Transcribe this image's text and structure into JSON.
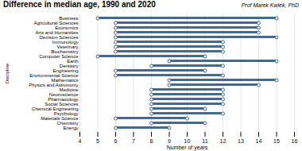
{
  "chart_data": {
    "type": "bar",
    "orientation": "horizontal",
    "title": "Difference in median age, 1990 and 2020",
    "xlabel": "Number of years",
    "ylabel": "Discipline",
    "annotations": [
      "Prof Marek Kwiek, PhD"
    ],
    "categories": [
      "Business",
      "Agricultural Sciences",
      "Economics",
      "Arts and Humanities",
      "Decision Sciences",
      "Immunology",
      "Veterinary",
      "Biochemistry",
      "Computer Science",
      "Earth",
      "Dentistry",
      "Engineering",
      "Environmental Science",
      "Mathematics",
      "Physics and Astronomy",
      "Medicine",
      "Neuroscience",
      "Pharmacology",
      "Social Sciences",
      "Chemical Engineering",
      "Psychology",
      "Materials Science",
      "Chemistry",
      "Energy"
    ],
    "values": [
      [
        5,
        15
      ],
      [
        6,
        14
      ],
      [
        6,
        14
      ],
      [
        6,
        14
      ],
      [
        6,
        15
      ],
      [
        6,
        12
      ],
      [
        6,
        12
      ],
      [
        6,
        12
      ],
      [
        5,
        11
      ],
      [
        9,
        15
      ],
      [
        8,
        12
      ],
      [
        6,
        11
      ],
      [
        6,
        12
      ],
      [
        9,
        15
      ],
      [
        9,
        14
      ],
      [
        8,
        12
      ],
      [
        8,
        12
      ],
      [
        8,
        12
      ],
      [
        8,
        12
      ],
      [
        8,
        11
      ],
      [
        8,
        12
      ],
      [
        6,
        10
      ],
      [
        8,
        11
      ],
      [
        6,
        9
      ]
    ],
    "color": "#3a6b9e",
    "marker": "circle",
    "xlim": [
      4,
      16
    ],
    "xticks": [
      4,
      5,
      6,
      7,
      8,
      9,
      10,
      11,
      12,
      13,
      14,
      15,
      16
    ],
    "grid": true
  }
}
